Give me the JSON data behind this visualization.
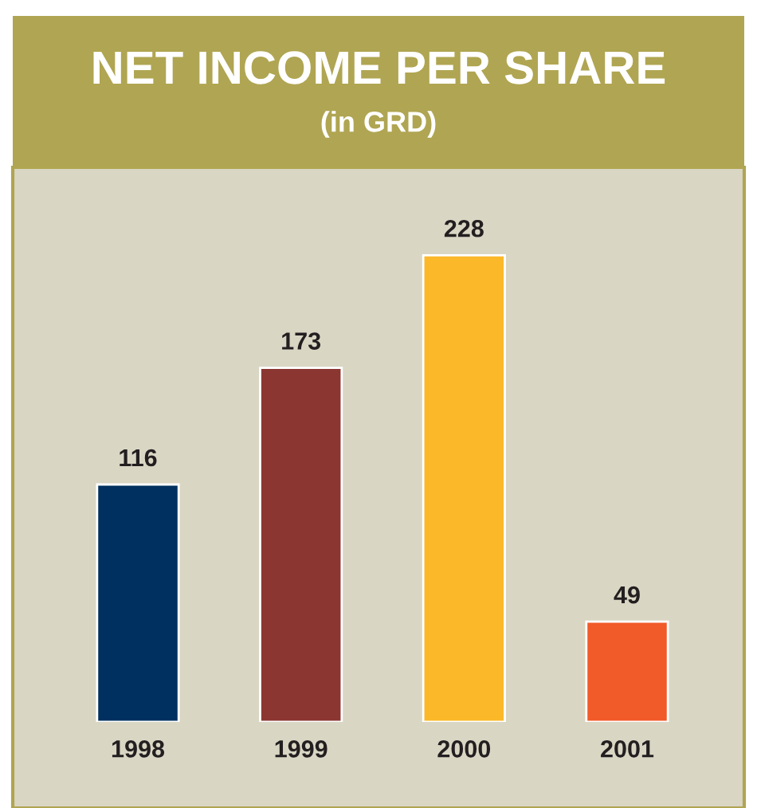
{
  "chart_data": {
    "type": "bar",
    "title": "NET INCOME PER SHARE",
    "subtitle": "(in GRD)",
    "categories": [
      "1998",
      "1999",
      "2000",
      "2001"
    ],
    "values": [
      116,
      173,
      228,
      49
    ],
    "colors": [
      "#00305f",
      "#8b3631",
      "#fbb829",
      "#f15a29"
    ],
    "data_labels": true,
    "grid": false,
    "legend": false
  }
}
